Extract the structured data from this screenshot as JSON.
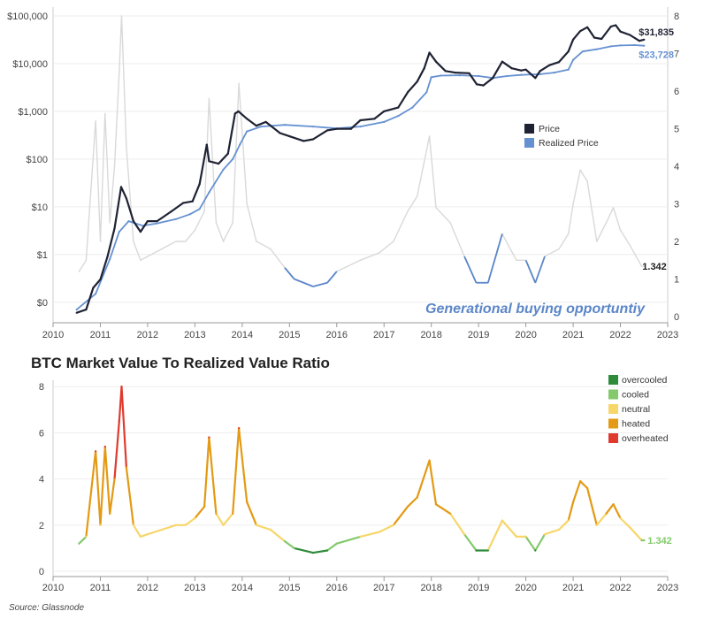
{
  "chart_data": [
    {
      "type": "line",
      "title": "",
      "xlabel": "",
      "ylabel": "",
      "y2label": "",
      "y_scale": "log",
      "ylim": [
        0.05,
        100000
      ],
      "y2lim": [
        0,
        8
      ],
      "xlim": [
        2010,
        2023
      ],
      "x_ticks": [
        "2010",
        "2011",
        "2012",
        "2013",
        "2014",
        "2015",
        "2016",
        "2017",
        "2018",
        "2019",
        "2020",
        "2021",
        "2022",
        "2023"
      ],
      "y_ticks": [
        {
          "value": 0.1,
          "label": "$0"
        },
        {
          "value": 1,
          "label": "$1"
        },
        {
          "value": 10,
          "label": "$10"
        },
        {
          "value": 100,
          "label": "$100"
        },
        {
          "value": 1000,
          "label": "$1,000"
        },
        {
          "value": 10000,
          "label": "$10,000"
        },
        {
          "value": 100000,
          "label": "$100,000"
        }
      ],
      "y2_ticks": [
        "0",
        "1",
        "2",
        "3",
        "4",
        "5",
        "6",
        "7",
        "8"
      ],
      "legend": [
        "Price",
        "Realized Price"
      ],
      "legend_position": "middle-right",
      "series": [
        {
          "name": "Price",
          "color": "#1e2233",
          "axis": "left",
          "x": [
            2010.5,
            2010.7,
            2010.85,
            2011.0,
            2011.15,
            2011.3,
            2011.44,
            2011.55,
            2011.7,
            2011.85,
            2012.0,
            2012.2,
            2012.5,
            2012.75,
            2012.95,
            2013.1,
            2013.25,
            2013.3,
            2013.5,
            2013.7,
            2013.85,
            2013.92,
            2014.1,
            2014.3,
            2014.5,
            2014.8,
            2015.0,
            2015.3,
            2015.5,
            2015.8,
            2016.0,
            2016.3,
            2016.5,
            2016.8,
            2017.0,
            2017.3,
            2017.5,
            2017.7,
            2017.85,
            2017.96,
            2018.1,
            2018.3,
            2018.5,
            2018.8,
            2018.96,
            2019.1,
            2019.3,
            2019.5,
            2019.7,
            2019.9,
            2020.0,
            2020.2,
            2020.3,
            2020.5,
            2020.7,
            2020.9,
            2021.0,
            2021.15,
            2021.3,
            2021.45,
            2021.6,
            2021.8,
            2021.9,
            2022.0,
            2022.2,
            2022.4,
            2022.5
          ],
          "values": [
            0.06,
            0.07,
            0.2,
            0.3,
            0.9,
            3.5,
            26,
            15,
            5,
            3,
            5,
            5,
            8,
            12,
            13,
            30,
            200,
            90,
            80,
            130,
            900,
            1000,
            700,
            500,
            600,
            350,
            300,
            240,
            260,
            400,
            430,
            430,
            650,
            700,
            1000,
            1200,
            2500,
            4200,
            8000,
            17000,
            11000,
            7000,
            6500,
            6300,
            3700,
            3500,
            5000,
            11000,
            8000,
            7200,
            7500,
            5000,
            7000,
            9300,
            10800,
            18000,
            32000,
            48000,
            58000,
            35000,
            33000,
            60000,
            64000,
            47000,
            40000,
            30000,
            31835
          ],
          "end_label": "$31,835"
        },
        {
          "name": "Realized Price",
          "color": "#6691d1",
          "axis": "left",
          "x": [
            2010.5,
            2010.9,
            2011.2,
            2011.4,
            2011.6,
            2011.9,
            2012.2,
            2012.6,
            2012.9,
            2013.1,
            2013.3,
            2013.6,
            2013.8,
            2013.95,
            2014.1,
            2014.4,
            2014.9,
            2015.5,
            2016.0,
            2016.5,
            2017.0,
            2017.3,
            2017.6,
            2017.9,
            2018.0,
            2018.2,
            2018.6,
            2019.0,
            2019.3,
            2019.6,
            2019.9,
            2020.3,
            2020.6,
            2020.9,
            2021.0,
            2021.2,
            2021.5,
            2021.8,
            2022.0,
            2022.3,
            2022.5
          ],
          "values": [
            0.07,
            0.15,
            0.8,
            3,
            5,
            4,
            4.5,
            5.5,
            7,
            9,
            20,
            60,
            100,
            200,
            380,
            480,
            520,
            480,
            440,
            480,
            600,
            800,
            1200,
            2500,
            5200,
            5600,
            5700,
            5500,
            5000,
            5500,
            5800,
            6000,
            6500,
            7500,
            12000,
            18000,
            20000,
            23000,
            24000,
            24500,
            23728
          ],
          "end_label": "$23,728"
        },
        {
          "name": "MVRV (background)",
          "color": "#d9d9d9",
          "axis": "right",
          "x": [
            2010.55,
            2010.7,
            2010.9,
            2011.0,
            2011.1,
            2011.2,
            2011.3,
            2011.4,
            2011.45,
            2011.55,
            2011.7,
            2011.85,
            2012.0,
            2012.3,
            2012.6,
            2012.8,
            2013.0,
            2013.2,
            2013.3,
            2013.45,
            2013.6,
            2013.8,
            2013.93,
            2014.1,
            2014.3,
            2014.6,
            2014.9,
            2015.1,
            2015.5,
            2015.8,
            2016.0,
            2016.5,
            2016.9,
            2017.2,
            2017.5,
            2017.7,
            2017.96,
            2018.1,
            2018.4,
            2018.7,
            2018.95,
            2019.2,
            2019.5,
            2019.8,
            2020.0,
            2020.2,
            2020.4,
            2020.7,
            2020.9,
            2021.0,
            2021.15,
            2021.3,
            2021.5,
            2021.7,
            2021.85,
            2022.0,
            2022.2,
            2022.45,
            2022.5
          ],
          "values": [
            1.2,
            1.5,
            5.2,
            2.0,
            5.4,
            2.5,
            4.0,
            6.5,
            8.0,
            4.5,
            2.0,
            1.5,
            1.6,
            1.8,
            2.0,
            2.0,
            2.3,
            2.8,
            5.8,
            2.5,
            2.0,
            2.5,
            6.2,
            3.0,
            2.0,
            1.8,
            1.3,
            1.0,
            0.8,
            0.9,
            1.2,
            1.5,
            1.7,
            2.0,
            2.8,
            3.2,
            4.8,
            2.9,
            2.5,
            1.6,
            0.9,
            0.9,
            2.2,
            1.5,
            1.5,
            0.9,
            1.6,
            1.8,
            2.2,
            3.0,
            3.9,
            3.6,
            2.0,
            2.5,
            2.9,
            2.3,
            1.9,
            1.34,
            1.342
          ],
          "end_label": "1.342"
        }
      ],
      "annotations": [
        "Generational buying opportuntiy"
      ]
    },
    {
      "type": "line",
      "title": "BTC Market Value To Realized Value Ratio",
      "xlabel": "",
      "ylabel": "",
      "ylim": [
        0,
        8.2
      ],
      "xlim": [
        2010,
        2023
      ],
      "x_ticks": [
        "2010",
        "2011",
        "2012",
        "2013",
        "2014",
        "2015",
        "2016",
        "2017",
        "2018",
        "2019",
        "2020",
        "2021",
        "2022",
        "2023"
      ],
      "y_ticks": [
        "0",
        "2",
        "4",
        "6",
        "8"
      ],
      "legend": [
        {
          "label": "overcooled",
          "color": "#2e8b3a"
        },
        {
          "label": "cooled",
          "color": "#84c96c"
        },
        {
          "label": "neutral",
          "color": "#f7d66a"
        },
        {
          "label": "heated",
          "color": "#e39a14"
        },
        {
          "label": "overheated",
          "color": "#e03a2e"
        }
      ],
      "legend_position": "top-right",
      "thresholds": [
        1,
        1.5,
        2.4,
        5
      ],
      "series": [
        {
          "name": "MVRV",
          "x": [
            2010.55,
            2010.7,
            2010.9,
            2011.0,
            2011.1,
            2011.2,
            2011.3,
            2011.4,
            2011.45,
            2011.55,
            2011.7,
            2011.85,
            2012.0,
            2012.3,
            2012.6,
            2012.8,
            2013.0,
            2013.2,
            2013.3,
            2013.45,
            2013.6,
            2013.8,
            2013.93,
            2014.1,
            2014.3,
            2014.6,
            2014.9,
            2015.1,
            2015.5,
            2015.8,
            2016.0,
            2016.5,
            2016.9,
            2017.2,
            2017.5,
            2017.7,
            2017.96,
            2018.1,
            2018.4,
            2018.7,
            2018.95,
            2019.2,
            2019.5,
            2019.8,
            2020.0,
            2020.2,
            2020.4,
            2020.7,
            2020.9,
            2021.0,
            2021.15,
            2021.3,
            2021.5,
            2021.7,
            2021.85,
            2022.0,
            2022.2,
            2022.45,
            2022.5
          ],
          "values": [
            1.2,
            1.5,
            5.2,
            2.0,
            5.4,
            2.5,
            4.0,
            6.5,
            8.0,
            4.5,
            2.0,
            1.5,
            1.6,
            1.8,
            2.0,
            2.0,
            2.3,
            2.8,
            5.8,
            2.5,
            2.0,
            2.5,
            6.2,
            3.0,
            2.0,
            1.8,
            1.3,
            1.0,
            0.8,
            0.9,
            1.2,
            1.5,
            1.7,
            2.0,
            2.8,
            3.2,
            4.8,
            2.9,
            2.5,
            1.6,
            0.9,
            0.9,
            2.2,
            1.5,
            1.5,
            0.9,
            1.6,
            1.8,
            2.2,
            3.0,
            3.9,
            3.6,
            2.0,
            2.5,
            2.9,
            2.3,
            1.9,
            1.34,
            1.342
          ],
          "end_label": "1.342"
        }
      ]
    }
  ],
  "source": "Source: Glassnode"
}
